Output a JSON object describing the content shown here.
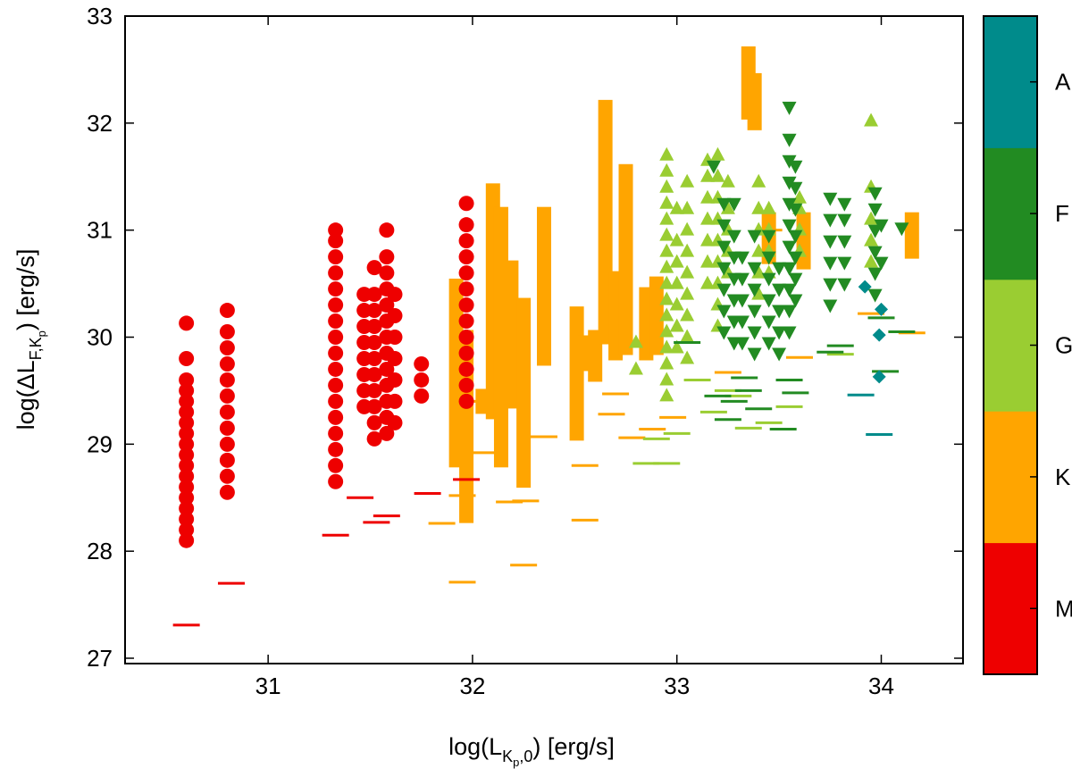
{
  "chart_data": {
    "type": "scatter",
    "title": "",
    "xlabel": {
      "pre": "log(L",
      "sub": "K",
      "subsub": "p",
      "sub2": ",0",
      "post": ") [erg/s]"
    },
    "ylabel": {
      "pre": "log(ΔL",
      "sub": "F,K",
      "subsub": "p",
      "post": ") [erg/s]"
    },
    "xlim": [
      30.3,
      34.4
    ],
    "ylim": [
      26.95,
      33.0
    ],
    "xticks": [
      "31",
      "32",
      "33",
      "34"
    ],
    "yticks": [
      "27",
      "28",
      "29",
      "30",
      "31",
      "32",
      "33"
    ],
    "grid": false,
    "colorbar": {
      "labels": [
        "M",
        "K",
        "G",
        "F",
        "A"
      ],
      "colors": [
        "#ee0000",
        "#ffa500",
        "#9acd32",
        "#228b22",
        "#008b8b"
      ]
    },
    "series": [
      {
        "name": "M",
        "color": "#ee0000",
        "marker": "circle",
        "flares": [
          {
            "x": 30.6,
            "ys": [
              28.1,
              28.2,
              28.3,
              28.4,
              28.5,
              28.6,
              28.7,
              28.8,
              28.9,
              29.0,
              29.1,
              29.2,
              29.3,
              29.4,
              29.5,
              29.6,
              29.8,
              30.13
            ]
          },
          {
            "x": 30.8,
            "ys": [
              28.55,
              28.7,
              28.85,
              29.0,
              29.15,
              29.3,
              29.45,
              29.6,
              29.75,
              29.9,
              30.05,
              30.25
            ]
          },
          {
            "x": 31.33,
            "ys": [
              28.65,
              28.8,
              28.95,
              29.1,
              29.25,
              29.4,
              29.55,
              29.7,
              29.85,
              30.0,
              30.15,
              30.3,
              30.45,
              30.6,
              30.75,
              30.9,
              31.0
            ]
          },
          {
            "x": 31.47,
            "ys": [
              29.35,
              29.5,
              29.65,
              29.8,
              29.95,
              30.1,
              30.25,
              30.4
            ]
          },
          {
            "x": 31.52,
            "ys": [
              29.05,
              29.2,
              29.35,
              29.5,
              29.65,
              29.8,
              29.95,
              30.1,
              30.25,
              30.4,
              30.65
            ]
          },
          {
            "x": 31.58,
            "ys": [
              29.1,
              29.25,
              29.4,
              29.55,
              29.7,
              29.85,
              30.0,
              30.15,
              30.3,
              30.45,
              30.6,
              30.75,
              31.0
            ]
          },
          {
            "x": 31.62,
            "ys": [
              29.2,
              29.4,
              29.6,
              29.8,
              30.0,
              30.2,
              30.4
            ]
          },
          {
            "x": 31.75,
            "ys": [
              29.45,
              29.6,
              29.75
            ]
          },
          {
            "x": 31.97,
            "ys": [
              29.4,
              29.55,
              29.7,
              29.85,
              30.0,
              30.15,
              30.3,
              30.45,
              30.6,
              30.75,
              30.9,
              31.05,
              31.25
            ]
          }
        ],
        "limits": [
          {
            "x": 30.6,
            "y": 27.31
          },
          {
            "x": 30.82,
            "y": 27.7
          },
          {
            "x": 31.33,
            "y": 28.15
          },
          {
            "x": 31.45,
            "y": 28.5
          },
          {
            "x": 31.53,
            "y": 28.27
          },
          {
            "x": 31.58,
            "y": 28.33
          },
          {
            "x": 31.78,
            "y": 28.54
          },
          {
            "x": 31.97,
            "y": 28.67
          }
        ]
      },
      {
        "name": "K",
        "color": "#ffa500",
        "marker": "square",
        "bars": [
          {
            "x": 31.92,
            "y0": 28.85,
            "y1": 30.48
          },
          {
            "x": 31.97,
            "y0": 28.33,
            "y1": 30.0
          },
          {
            "x": 32.05,
            "y0": 29.35,
            "y1": 29.45
          },
          {
            "x": 32.1,
            "y0": 29.3,
            "y1": 31.37
          },
          {
            "x": 32.14,
            "y0": 28.85,
            "y1": 31.15
          },
          {
            "x": 32.19,
            "y0": 29.4,
            "y1": 30.65
          },
          {
            "x": 32.25,
            "y0": 28.66,
            "y1": 30.3
          },
          {
            "x": 32.35,
            "y0": 29.8,
            "y1": 31.15
          },
          {
            "x": 32.51,
            "y0": 29.1,
            "y1": 30.22
          },
          {
            "x": 32.55,
            "y0": 29.75,
            "y1": 29.95
          },
          {
            "x": 32.6,
            "y0": 29.65,
            "y1": 30.0
          },
          {
            "x": 32.65,
            "y0": 30.0,
            "y1": 32.15
          },
          {
            "x": 32.7,
            "y0": 29.85,
            "y1": 30.55
          },
          {
            "x": 32.75,
            "y0": 29.9,
            "y1": 31.55
          },
          {
            "x": 32.85,
            "y0": 29.85,
            "y1": 30.4
          },
          {
            "x": 32.9,
            "y0": 29.9,
            "y1": 30.5
          },
          {
            "x": 33.35,
            "y0": 32.1,
            "y1": 32.65
          },
          {
            "x": 33.38,
            "y0": 32.0,
            "y1": 32.4
          },
          {
            "x": 33.45,
            "y0": 30.75,
            "y1": 31.1
          },
          {
            "x": 33.62,
            "y0": 30.7,
            "y1": 31.1
          },
          {
            "x": 34.15,
            "y0": 30.8,
            "y1": 31.1
          }
        ],
        "limits": [
          {
            "x": 32.0,
            "y": 29.4
          },
          {
            "x": 31.95,
            "y": 28.52
          },
          {
            "x": 31.85,
            "y": 28.26
          },
          {
            "x": 31.95,
            "y": 27.71
          },
          {
            "x": 32.05,
            "y": 28.92
          },
          {
            "x": 32.18,
            "y": 28.46
          },
          {
            "x": 32.26,
            "y": 28.47
          },
          {
            "x": 32.25,
            "y": 27.87
          },
          {
            "x": 32.35,
            "y": 29.07
          },
          {
            "x": 32.55,
            "y": 28.8
          },
          {
            "x": 32.55,
            "y": 28.29
          },
          {
            "x": 32.7,
            "y": 29.47
          },
          {
            "x": 32.68,
            "y": 29.28
          },
          {
            "x": 32.78,
            "y": 29.06
          },
          {
            "x": 32.88,
            "y": 29.14
          },
          {
            "x": 32.98,
            "y": 29.25
          },
          {
            "x": 33.25,
            "y": 29.67
          },
          {
            "x": 33.45,
            "y": 31.0
          },
          {
            "x": 33.6,
            "y": 29.81
          },
          {
            "x": 33.95,
            "y": 30.22
          },
          {
            "x": 34.15,
            "y": 30.04
          }
        ]
      },
      {
        "name": "G",
        "color": "#9acd32",
        "marker": "triangle-up",
        "flares": [
          {
            "x": 32.8,
            "ys": [
              29.7,
              29.95
            ]
          },
          {
            "x": 32.95,
            "ys": [
              29.45,
              29.6,
              29.75,
              29.9,
              30.05,
              30.2,
              30.35,
              30.5,
              30.65,
              30.8,
              30.95,
              31.1,
              31.25,
              31.4,
              31.55,
              31.7
            ]
          },
          {
            "x": 33.0,
            "ys": [
              29.9,
              30.1,
              30.3,
              30.5,
              30.7,
              30.9,
              31.2
            ]
          },
          {
            "x": 33.05,
            "ys": [
              29.8,
              30.0,
              30.2,
              30.4,
              30.6,
              30.8,
              31.0,
              31.2,
              31.45
            ]
          },
          {
            "x": 33.15,
            "ys": [
              30.5,
              30.7,
              30.9,
              31.1,
              31.3,
              31.5,
              31.65
            ]
          },
          {
            "x": 33.2,
            "ys": [
              30.1,
              30.3,
              30.5,
              30.7,
              30.9,
              31.1,
              31.3,
              31.5,
              31.7
            ]
          },
          {
            "x": 33.25,
            "ys": [
              30.6,
              30.8,
              31.0,
              31.2,
              31.45
            ]
          },
          {
            "x": 33.4,
            "ys": [
              30.4,
              30.6,
              30.8,
              31.0,
              31.2,
              31.45
            ]
          },
          {
            "x": 33.45,
            "ys": [
              30.6,
              30.8,
              31.0,
              31.2
            ]
          },
          {
            "x": 33.6,
            "ys": [
              30.8,
              31.0,
              31.2,
              31.3
            ]
          },
          {
            "x": 33.95,
            "ys": [
              30.7,
              30.9,
              31.1,
              31.4,
              32.02
            ]
          }
        ],
        "limits": [
          {
            "x": 32.95,
            "y": 28.82
          },
          {
            "x": 32.85,
            "y": 28.82
          },
          {
            "x": 33.0,
            "y": 29.1
          },
          {
            "x": 32.9,
            "y": 29.05
          },
          {
            "x": 33.1,
            "y": 29.6
          },
          {
            "x": 33.18,
            "y": 29.3
          },
          {
            "x": 33.25,
            "y": 29.5
          },
          {
            "x": 33.3,
            "y": 29.45
          },
          {
            "x": 33.35,
            "y": 29.15
          },
          {
            "x": 33.45,
            "y": 29.2
          },
          {
            "x": 33.55,
            "y": 29.35
          },
          {
            "x": 33.8,
            "y": 29.84
          }
        ]
      },
      {
        "name": "F",
        "color": "#228b22",
        "marker": "triangle-down",
        "flares": [
          {
            "x": 33.18,
            "ys": [
              31.6
            ]
          },
          {
            "x": 33.23,
            "ys": [
              30.05,
              30.25,
              30.45,
              30.65,
              30.85,
              31.05,
              31.25
            ]
          },
          {
            "x": 33.28,
            "ys": [
              29.95,
              30.15,
              30.35,
              30.55,
              30.75,
              30.95,
              31.25
            ]
          },
          {
            "x": 33.32,
            "ys": [
              29.95,
              30.15,
              30.35,
              30.55,
              30.75
            ]
          },
          {
            "x": 33.38,
            "ys": [
              29.85,
              30.05,
              30.25,
              30.45,
              30.65,
              30.95
            ]
          },
          {
            "x": 33.45,
            "ys": [
              29.95,
              30.15,
              30.35,
              30.55,
              30.75,
              30.95
            ]
          },
          {
            "x": 33.5,
            "ys": [
              29.85,
              30.05,
              30.25,
              30.45,
              30.65
            ]
          },
          {
            "x": 33.55,
            "ys": [
              30.05,
              30.25,
              30.45,
              30.65,
              30.85,
              31.05,
              31.25,
              31.45,
              31.65,
              31.85,
              32.15
            ]
          },
          {
            "x": 33.58,
            "ys": [
              30.35,
              30.55,
              30.75,
              30.95,
              31.2,
              31.4,
              31.6
            ]
          },
          {
            "x": 33.75,
            "ys": [
              30.3,
              30.5,
              30.7,
              30.9,
              31.1,
              31.3
            ]
          },
          {
            "x": 33.82,
            "ys": [
              30.5,
              30.7,
              30.9,
              31.1,
              31.25
            ]
          },
          {
            "x": 33.97,
            "ys": [
              30.4,
              30.6,
              30.8,
              31.0,
              31.2,
              31.35
            ]
          },
          {
            "x": 34.0,
            "ys": [
              30.7,
              31.05
            ]
          },
          {
            "x": 34.1,
            "ys": [
              31.02
            ]
          }
        ],
        "limits": [
          {
            "x": 33.05,
            "y": 29.95
          },
          {
            "x": 33.2,
            "y": 29.45
          },
          {
            "x": 33.25,
            "y": 29.23
          },
          {
            "x": 33.28,
            "y": 29.4
          },
          {
            "x": 33.33,
            "y": 29.62
          },
          {
            "x": 33.35,
            "y": 29.5
          },
          {
            "x": 33.4,
            "y": 29.33
          },
          {
            "x": 33.52,
            "y": 29.14
          },
          {
            "x": 33.55,
            "y": 29.6
          },
          {
            "x": 33.58,
            "y": 29.48
          },
          {
            "x": 33.75,
            "y": 29.86
          },
          {
            "x": 33.8,
            "y": 29.92
          },
          {
            "x": 34.0,
            "y": 30.18
          },
          {
            "x": 34.02,
            "y": 29.68
          },
          {
            "x": 34.1,
            "y": 30.05
          }
        ]
      },
      {
        "name": "A",
        "color": "#008b8b",
        "marker": "diamond",
        "points": [
          {
            "x": 33.92,
            "y": 30.47
          },
          {
            "x": 34.0,
            "y": 30.26
          },
          {
            "x": 33.99,
            "y": 30.02
          },
          {
            "x": 33.99,
            "y": 29.63
          }
        ],
        "limits": [
          {
            "x": 33.9,
            "y": 29.46
          },
          {
            "x": 33.99,
            "y": 29.09
          }
        ]
      }
    ]
  }
}
